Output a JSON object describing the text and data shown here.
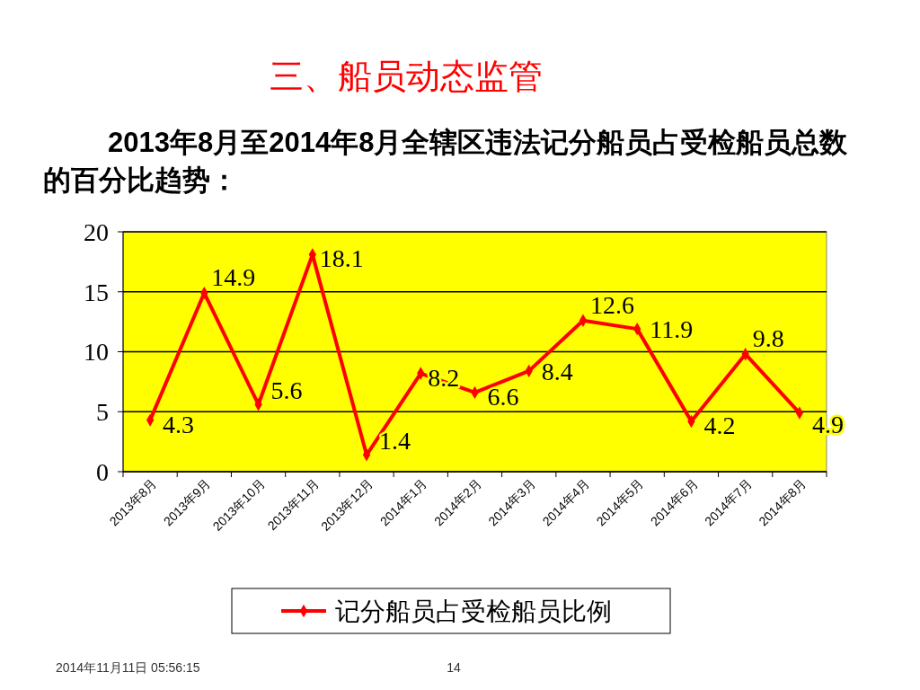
{
  "chart_data": {
    "type": "line",
    "title": "三、船员动态监管",
    "subtitle": "2013年8月至2014年8月全辖区违法记分船员占受检船员总数的百分比趋势：",
    "categories": [
      "2013年8月",
      "2013年9月",
      "2013年10月",
      "2013年11月",
      "2013年12月",
      "2014年1月",
      "2014年2月",
      "2014年3月",
      "2014年4月",
      "2014年5月",
      "2014年6月",
      "2014年7月",
      "2014年8月"
    ],
    "series": [
      {
        "name": "记分船员占受检船员比例",
        "color": "#ff0000",
        "values": [
          4.3,
          14.9,
          5.6,
          18.1,
          1.4,
          8.2,
          6.6,
          8.4,
          12.6,
          11.9,
          4.2,
          9.8,
          4.9
        ]
      }
    ],
    "ylim": [
      0,
      20
    ],
    "yticks": [
      0,
      5,
      10,
      15,
      20
    ],
    "grid": "y",
    "legend": "bottom",
    "marker": "diamond",
    "data_labels": true,
    "annotations": [
      "2014年11月11日  05:56:15",
      "14"
    ]
  }
}
